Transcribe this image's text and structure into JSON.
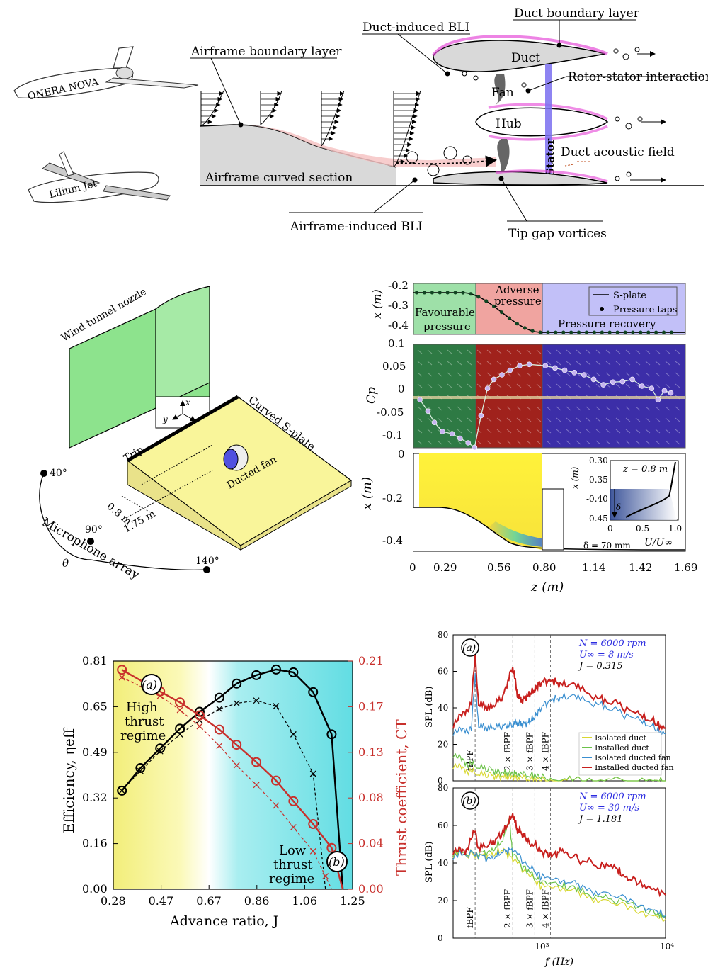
{
  "schematic": {
    "aircraft_1": "ONERA NOVA",
    "aircraft_2": "Lilium Jet",
    "airframe_boundary_layer": "Airframe boundary layer",
    "duct_induced_bli": "Duct-induced BLI",
    "duct_boundary_layer": "Duct boundary layer",
    "duct": "Duct",
    "fan": "Fan",
    "hub": "Hub",
    "stator": "Stator",
    "rotor_stator_interaction": "Rotor-stator interaction",
    "duct_acoustic_field": "Duct acoustic field",
    "airframe_curved_section": "Airframe curved section",
    "airframe_induced_bli": "Airframe-induced BLI",
    "tip_gap_vortices": "Tip gap vortices"
  },
  "setup": {
    "wind_tunnel_nozzle": "Wind tunnel nozzle",
    "curved_s_plate": "Curved S-plate",
    "trip": "Trip",
    "ducted_fan": "Ducted fan",
    "dist_1": "0.8 m",
    "dist_2": "1.75 m",
    "microphone_array": "Microphone array",
    "theta": "θ",
    "angle_40": "40°",
    "angle_90": "90°",
    "angle_140": "140°",
    "axis_x": "x",
    "axis_y": "y",
    "axis_z": "z"
  },
  "plate_panel": {
    "region_fav": [
      "Favourable",
      "pressure"
    ],
    "region_adv": [
      "Adverse",
      "pressure"
    ],
    "region_rec": "Pressure recovery",
    "legend_splate": "S-plate",
    "legend_taps": "Pressure taps",
    "ylabel_top": "x (m)",
    "ylabel_mid": "Cp",
    "ylabel_bot": "x (m)",
    "xlabel": "z (m)",
    "top_ticks": [
      "-0.2",
      "-0.3",
      "-0.4"
    ],
    "mid_ticks": [
      "0.1",
      "0.05",
      "0",
      "-0.05",
      "-0.1"
    ],
    "bot_ticks": [
      "0",
      "-0.2",
      "-0.4"
    ],
    "x_ticks": [
      "0",
      "0.29",
      "0.56",
      "0.80",
      "1.14",
      "1.42",
      "1.69"
    ],
    "inset_title": "z = 0.8 m",
    "inset_xlabel": "U/U∞",
    "inset_ylabel": "x (m)",
    "inset_yticks": [
      "-0.30",
      "-0.35",
      "-0.40",
      "-0.45"
    ],
    "inset_xticks": [
      "0",
      "0.5",
      "1.0"
    ],
    "delta": "δ",
    "delta_value": "δ = 70 mm"
  },
  "chart_data": [
    {
      "type": "line",
      "title": "",
      "xlabel": "Advance ratio, J",
      "ylabel": "Efficiency, ηeff",
      "ylabel_right": "Thrust coefficient, CT",
      "xlim": [
        0.28,
        1.25
      ],
      "ylim": [
        0,
        0.81
      ],
      "ylim_right": [
        0,
        0.21
      ],
      "x_ticks": [
        "0.28",
        "0.47",
        "0.67",
        "0.86",
        "1.06",
        "1.25"
      ],
      "y_ticks": [
        "0.00",
        "0.16",
        "0.32",
        "0.49",
        "0.65",
        "0.81"
      ],
      "y_ticks_right": [
        "0.00",
        "0.04",
        "0.08",
        "0.13",
        "0.17",
        "0.21"
      ],
      "panel_a": "(a)",
      "panel_b": "(b)",
      "high_regime": [
        "High",
        "thrust",
        "regime"
      ],
      "low_regime": [
        "Low",
        "thrust",
        "regime"
      ],
      "series": [
        {
          "name": "Efficiency installed",
          "axis": "left",
          "color": "#000000",
          "dashed": false,
          "marker": "circle",
          "x": [
            0.315,
            0.39,
            0.47,
            0.55,
            0.63,
            0.71,
            0.78,
            0.86,
            0.94,
            1.01,
            1.09,
            1.165,
            1.21
          ],
          "y": [
            0.35,
            0.43,
            0.5,
            0.57,
            0.63,
            0.68,
            0.73,
            0.76,
            0.78,
            0.77,
            0.7,
            0.55,
            0.0
          ]
        },
        {
          "name": "Efficiency isolated",
          "axis": "left",
          "color": "#000000",
          "dashed": true,
          "marker": "cross",
          "x": [
            0.315,
            0.39,
            0.47,
            0.55,
            0.63,
            0.71,
            0.78,
            0.86,
            0.94,
            1.01,
            1.09,
            1.14
          ],
          "y": [
            0.35,
            0.42,
            0.49,
            0.55,
            0.6,
            0.64,
            0.66,
            0.67,
            0.65,
            0.55,
            0.41,
            0.0
          ]
        },
        {
          "name": "CT installed",
          "axis": "right",
          "color": "#c8302c",
          "dashed": false,
          "marker": "circle",
          "x": [
            0.315,
            0.47,
            0.55,
            0.63,
            0.71,
            0.78,
            0.86,
            0.94,
            1.01,
            1.09,
            1.165,
            1.21
          ],
          "y": [
            0.202,
            0.182,
            0.172,
            0.16,
            0.147,
            0.133,
            0.117,
            0.1,
            0.081,
            0.06,
            0.038,
            0.0
          ]
        },
        {
          "name": "CT isolated",
          "axis": "right",
          "color": "#c8302c",
          "dashed": true,
          "marker": "cross",
          "x": [
            0.315,
            0.47,
            0.55,
            0.63,
            0.71,
            0.78,
            0.86,
            0.94,
            1.01,
            1.09,
            1.14,
            1.165
          ],
          "y": [
            0.195,
            0.178,
            0.165,
            0.15,
            0.132,
            0.114,
            0.096,
            0.077,
            0.057,
            0.035,
            0.012,
            0.0
          ]
        }
      ]
    },
    {
      "type": "line",
      "panel": "(a)",
      "xscale": "log",
      "xlim": [
        200,
        10000
      ],
      "ylim": [
        0,
        80
      ],
      "ylabel": "SPL (dB)",
      "y_ticks": [
        "0",
        "20",
        "40",
        "60",
        "80"
      ],
      "conditions": [
        "N = 6000 rpm",
        "U∞ = 8 m/s",
        "J = 0.315"
      ],
      "harmonic_labels": [
        "fBPF",
        "2 × fBPF",
        "3 × fBPF",
        "4 × fBPF"
      ],
      "harmonic_freqs": [
        300,
        600,
        900,
        1200
      ],
      "legend": [
        "Isolated duct",
        "Installed duct",
        "Isolated ducted fan",
        "Installed ducted fan"
      ],
      "series": [
        {
          "name": "Isolated duct",
          "color": "#d8d832",
          "x": [
            200,
            250,
            300,
            400,
            500,
            600,
            700,
            900,
            1200,
            2000,
            4000,
            8000,
            10000
          ],
          "y": [
            9,
            6,
            4,
            3,
            2,
            2,
            1,
            1,
            0,
            0,
            0,
            0,
            0
          ]
        },
        {
          "name": "Installed duct",
          "color": "#6cc24a",
          "x": [
            200,
            250,
            300,
            400,
            500,
            600,
            700,
            900,
            1200,
            2000,
            4000,
            8000,
            10000
          ],
          "y": [
            15,
            10,
            8,
            6,
            4,
            4,
            3,
            3,
            1,
            0,
            0,
            0,
            0
          ]
        },
        {
          "name": "Isolated ducted fan",
          "color": "#3a8fd0",
          "x": [
            200,
            250,
            280,
            300,
            320,
            400,
            500,
            600,
            650,
            700,
            800,
            900,
            1000,
            1200,
            1500,
            2000,
            3000,
            4000,
            6000,
            8000,
            10000
          ],
          "y": [
            27,
            28,
            28,
            58,
            30,
            29,
            30,
            31,
            32,
            31,
            32,
            35,
            40,
            44,
            46,
            45,
            42,
            38,
            33,
            30,
            26
          ]
        },
        {
          "name": "Installed ducted fan",
          "color": "#c8201e",
          "x": [
            200,
            250,
            280,
            300,
            320,
            400,
            500,
            600,
            650,
            700,
            800,
            900,
            1000,
            1200,
            1500,
            2000,
            3000,
            4000,
            6000,
            8000,
            10000
          ],
          "y": [
            31,
            38,
            42,
            69,
            42,
            40,
            46,
            63,
            48,
            44,
            47,
            50,
            54,
            55,
            53,
            51,
            45,
            42,
            36,
            33,
            29
          ]
        }
      ]
    },
    {
      "type": "line",
      "panel": "(b)",
      "xscale": "log",
      "xlim": [
        200,
        10000
      ],
      "ylim": [
        0,
        80
      ],
      "xlabel": "f (Hz)",
      "ylabel": "SPL (dB)",
      "y_ticks": [
        "0",
        "20",
        "40",
        "60",
        "80"
      ],
      "x_ticks": [
        "10³",
        "10⁴"
      ],
      "conditions": [
        "N = 6000 rpm",
        "U∞ = 30 m/s",
        "J = 1.181"
      ],
      "harmonic_labels": [
        "fBPF",
        "2 × fBPF",
        "3 × fBPF",
        "4 × fBPF"
      ],
      "harmonic_freqs": [
        300,
        600,
        900,
        1200
      ],
      "series": [
        {
          "name": "Isolated duct",
          "color": "#d8d832",
          "x": [
            200,
            300,
            400,
            500,
            600,
            800,
            1000,
            1500,
            2000,
            3000,
            5000,
            8000,
            10000
          ],
          "y": [
            45,
            44,
            44,
            47,
            42,
            34,
            28,
            26,
            24,
            20,
            16,
            12,
            10
          ]
        },
        {
          "name": "Installed duct",
          "color": "#6cc24a",
          "x": [
            200,
            300,
            400,
            500,
            560,
            600,
            800,
            1000,
            1500,
            2000,
            3000,
            5000,
            8000,
            10000
          ],
          "y": [
            46,
            45,
            46,
            52,
            64,
            44,
            35,
            30,
            28,
            25,
            22,
            18,
            14,
            12
          ]
        },
        {
          "name": "Isolated ducted fan",
          "color": "#3a8fd0",
          "x": [
            200,
            300,
            400,
            500,
            600,
            800,
            1000,
            1500,
            2000,
            3000,
            5000,
            8000,
            10000
          ],
          "y": [
            44,
            45,
            42,
            46,
            47,
            38,
            33,
            30,
            28,
            24,
            20,
            15,
            12
          ]
        },
        {
          "name": "Installed ducted fan",
          "color": "#c8201e",
          "x": [
            200,
            250,
            300,
            320,
            400,
            500,
            600,
            650,
            700,
            800,
            1000,
            1200,
            1500,
            2000,
            3000,
            4000,
            5000,
            7000,
            10000
          ],
          "y": [
            47,
            46,
            57,
            48,
            50,
            56,
            66,
            58,
            56,
            52,
            47,
            44,
            46,
            42,
            39,
            37,
            32,
            28,
            23
          ]
        }
      ]
    }
  ]
}
